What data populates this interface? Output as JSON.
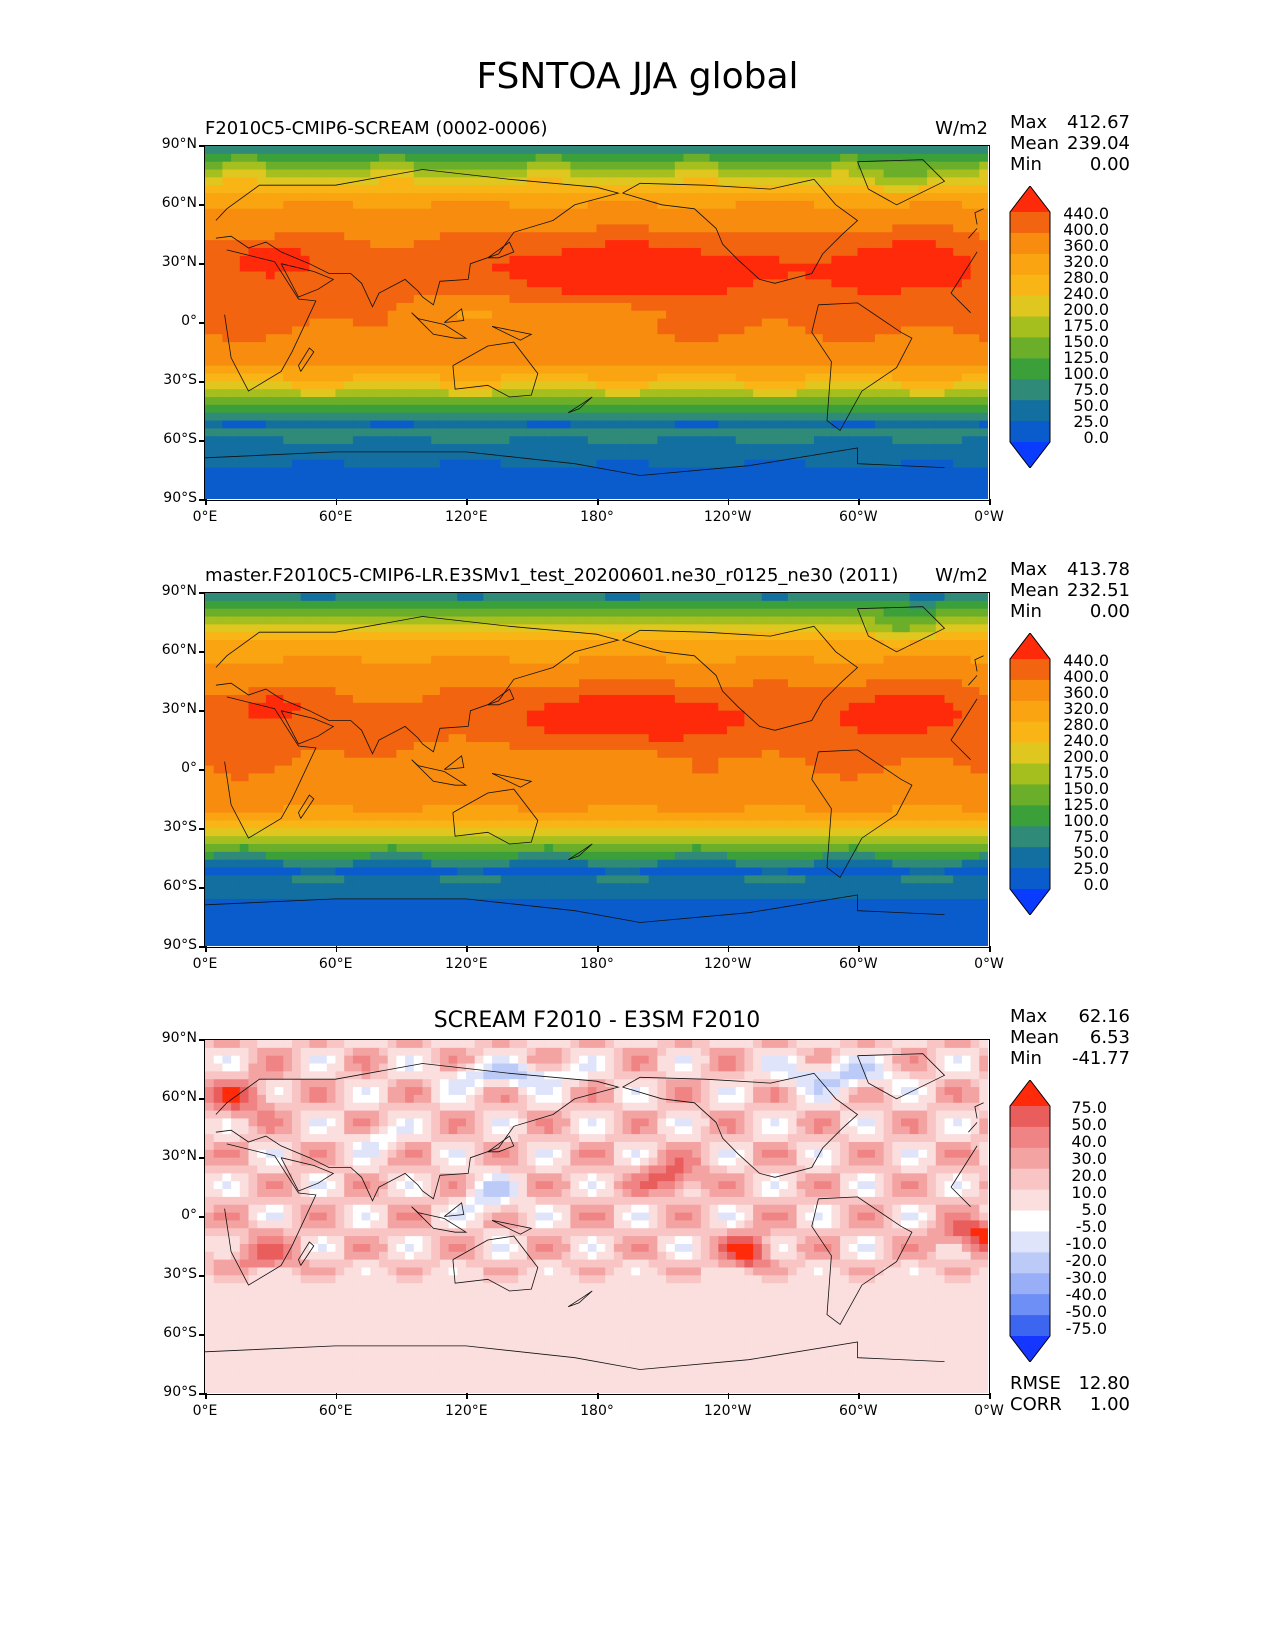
{
  "figure_title": "FSNTOA JJA global",
  "lat_labels": [
    "90°N",
    "60°N",
    "30°N",
    "0°",
    "30°S",
    "60°S",
    "90°S"
  ],
  "lon_labels": [
    "0°E",
    "60°E",
    "120°E",
    "180°",
    "120°W",
    "60°W",
    "0°W"
  ],
  "colors": {
    "panel_scale": [
      "#0a3cff",
      "#0a5ccc",
      "#126f9f",
      "#2f8a78",
      "#3ca03a",
      "#6aae2a",
      "#a5bf1f",
      "#e0c71f",
      "#f8b515",
      "#faa411",
      "#f88c0f",
      "#f2640f",
      "#ff2a0a"
    ],
    "diff_scale": [
      "#1536ff",
      "#3d66f0",
      "#6e8ff5",
      "#98aef7",
      "#bccaf8",
      "#dfe4fb",
      "#ffffff",
      "#fbdede",
      "#f8c4c4",
      "#f4a3a3",
      "#f08484",
      "#ea5d5d",
      "#ff2a0a"
    ]
  },
  "panels": [
    {
      "title": "F2010C5-CMIP6-SCREAM (0002-0006)",
      "units": "W/m2",
      "stats": {
        "max_label": "Max",
        "max": "412.67",
        "mean_label": "Mean",
        "mean": "239.04",
        "min_label": "Min",
        "min": "0.00"
      },
      "colorbar_labels": [
        "440.0",
        "400.0",
        "360.0",
        "320.0",
        "280.0",
        "240.0",
        "200.0",
        "175.0",
        "150.0",
        "125.0",
        "100.0",
        "75.0",
        "50.0",
        "25.0",
        "0.0"
      ]
    },
    {
      "title": "master.F2010C5-CMIP6-LR.E3SMv1_test_20200601.ne30_r0125_ne30 (2011)",
      "units": "W/m2",
      "stats": {
        "max_label": "Max",
        "max": "413.78",
        "mean_label": "Mean",
        "mean": "232.51",
        "min_label": "Min",
        "min": "0.00"
      },
      "colorbar_labels": [
        "440.0",
        "400.0",
        "360.0",
        "320.0",
        "280.0",
        "240.0",
        "200.0",
        "175.0",
        "150.0",
        "125.0",
        "100.0",
        "75.0",
        "50.0",
        "25.0",
        "0.0"
      ]
    },
    {
      "title": "SCREAM F2010 - E3SM F2010",
      "units": "",
      "stats": {
        "max_label": "Max",
        "max": "62.16",
        "mean_label": "Mean",
        "mean": "6.53",
        "min_label": "Min",
        "min": "-41.77"
      },
      "colorbar_labels": [
        "75.0",
        "50.0",
        "40.0",
        "30.0",
        "20.0",
        "10.0",
        "5.0",
        "-5.0",
        "-10.0",
        "-20.0",
        "-30.0",
        "-40.0",
        "-50.0",
        "-75.0"
      ],
      "extra_stats": {
        "rmse_label": "RMSE",
        "rmse": "12.80",
        "corr_label": "CORR",
        "corr": "1.00"
      }
    }
  ],
  "chart_data": [
    {
      "type": "heatmap",
      "title": "F2010C5-CMIP6-SCREAM (0002-0006)",
      "units": "W/m2",
      "x_ticks": [
        "0°E",
        "60°E",
        "120°E",
        "180°",
        "120°W",
        "60°W",
        "0°W"
      ],
      "y_ticks": [
        "90°N",
        "60°N",
        "30°N",
        "0°",
        "30°S",
        "60°S",
        "90°S"
      ],
      "xlim": [
        0,
        360
      ],
      "ylim": [
        -90,
        90
      ],
      "levels": [
        0,
        25,
        50,
        75,
        100,
        125,
        150,
        175,
        200,
        240,
        280,
        320,
        360,
        400,
        440
      ],
      "max": 412.67,
      "mean": 239.04,
      "min": 0.0
    },
    {
      "type": "heatmap",
      "title": "master.F2010C5-CMIP6-LR.E3SMv1_test_20200601.ne30_r0125_ne30 (2011)",
      "units": "W/m2",
      "x_ticks": [
        "0°E",
        "60°E",
        "120°E",
        "180°",
        "120°W",
        "60°W",
        "0°W"
      ],
      "y_ticks": [
        "90°N",
        "60°N",
        "30°N",
        "0°",
        "30°S",
        "60°S",
        "90°S"
      ],
      "xlim": [
        0,
        360
      ],
      "ylim": [
        -90,
        90
      ],
      "levels": [
        0,
        25,
        50,
        75,
        100,
        125,
        150,
        175,
        200,
        240,
        280,
        320,
        360,
        400,
        440
      ],
      "max": 413.78,
      "mean": 232.51,
      "min": 0.0
    },
    {
      "type": "heatmap",
      "title": "SCREAM F2010 - E3SM F2010",
      "x_ticks": [
        "0°E",
        "60°E",
        "120°E",
        "180°",
        "120°W",
        "60°W",
        "0°W"
      ],
      "y_ticks": [
        "90°N",
        "60°N",
        "30°N",
        "0°",
        "30°S",
        "60°S",
        "90°S"
      ],
      "xlim": [
        0,
        360
      ],
      "ylim": [
        -90,
        90
      ],
      "levels": [
        -75,
        -50,
        -40,
        -30,
        -20,
        -10,
        -5,
        5,
        10,
        20,
        30,
        40,
        50,
        75
      ],
      "max": 62.16,
      "mean": 6.53,
      "min": -41.77,
      "rmse": 12.8,
      "corr": 1.0
    }
  ]
}
